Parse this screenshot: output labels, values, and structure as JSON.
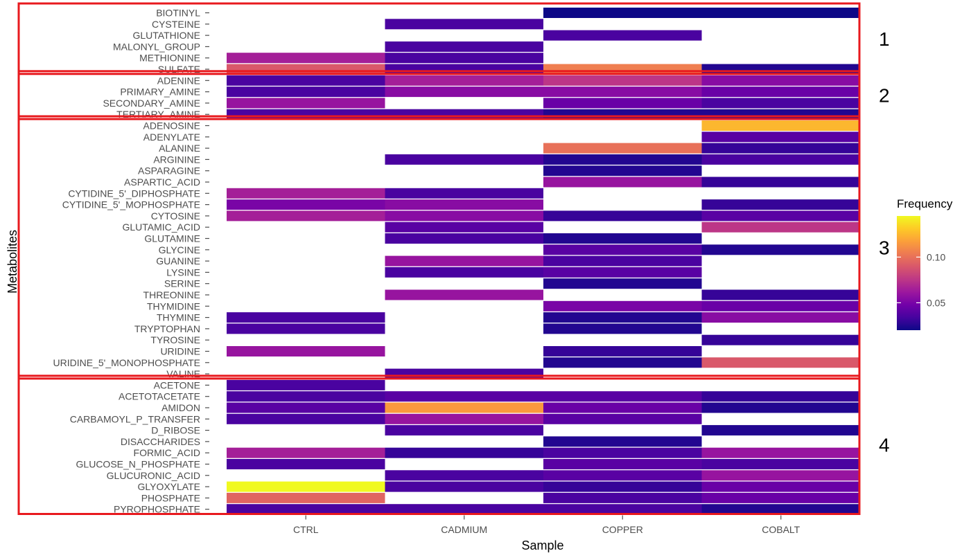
{
  "chart_data": {
    "type": "heatmap",
    "xlabel": "Sample",
    "ylabel": "Metabolites",
    "x_categories": [
      "CTRL",
      "CADMIUM",
      "COPPER",
      "COBALT"
    ],
    "y_categories": [
      "BIOTINYL",
      "CYSTEINE",
      "GLUTATHIONE",
      "MALONYL_GROUP",
      "METHIONINE",
      "SULFATE",
      "ADENINE",
      "PRIMARY_AMINE",
      "SECONDARY_AMINE",
      "TERTIARY_AMINE",
      "ADENOSINE",
      "ADENYLATE",
      "ALANINE",
      "ARGININE",
      "ASPARAGINE",
      "ASPARTIC_ACID",
      "CYTIDINE_5'_DIPHOSPHATE",
      "CYTIDINE_5'_MOPHOSPHATE",
      "CYTOSINE",
      "GLUTAMIC_ACID",
      "GLUTAMINE",
      "GLYCINE",
      "GUANINE",
      "LYSINE",
      "SERINE",
      "THREONINE",
      "THYMIDINE",
      "THYMINE",
      "TRYPTOPHAN",
      "TYROSINE",
      "URIDINE",
      "URIDINE_5'_MONOPHOSPHATE",
      "VALINE",
      "ACETONE",
      "ACETOTACETATE",
      "AMIDON",
      "CARBAMOYL_P_TRANSFER",
      "D_RIBOSE",
      "DISACCHARIDES",
      "FORMIC_ACID",
      "GLUCOSE_N_PHOSPHATE",
      "GLUCURONIC_ACID",
      "GLYOXYLATE",
      "PHOSPHATE",
      "PYROPHOSPHATE"
    ],
    "values": [
      [
        null,
        null,
        0.02,
        0.02
      ],
      [
        null,
        0.035,
        null,
        null
      ],
      [
        null,
        null,
        0.035,
        null
      ],
      [
        null,
        0.035,
        null,
        null
      ],
      [
        0.065,
        0.035,
        null,
        null
      ],
      [
        0.09,
        0.035,
        0.105,
        0.025
      ],
      [
        0.035,
        0.065,
        0.075,
        0.055
      ],
      [
        0.035,
        0.055,
        0.055,
        0.045
      ],
      [
        0.06,
        null,
        0.045,
        0.035
      ],
      [
        0.035,
        0.035,
        0.025,
        0.025
      ],
      [
        null,
        null,
        null,
        0.125
      ],
      [
        null,
        null,
        null,
        0.04
      ],
      [
        null,
        null,
        0.1,
        0.03
      ],
      [
        null,
        0.035,
        0.025,
        0.035
      ],
      [
        null,
        null,
        0.025,
        null
      ],
      [
        null,
        null,
        0.06,
        0.03
      ],
      [
        0.065,
        0.035,
        null,
        null
      ],
      [
        0.05,
        0.055,
        null,
        0.03
      ],
      [
        0.065,
        0.055,
        0.03,
        0.04
      ],
      [
        null,
        0.04,
        null,
        0.075
      ],
      [
        null,
        0.035,
        0.025,
        null
      ],
      [
        null,
        null,
        0.04,
        0.025
      ],
      [
        null,
        0.06,
        0.035,
        null
      ],
      [
        null,
        0.035,
        0.04,
        null
      ],
      [
        null,
        null,
        0.025,
        null
      ],
      [
        null,
        0.06,
        null,
        0.03
      ],
      [
        null,
        null,
        0.05,
        0.045
      ],
      [
        0.035,
        null,
        0.025,
        0.055
      ],
      [
        0.035,
        null,
        0.025,
        null
      ],
      [
        null,
        null,
        null,
        0.03
      ],
      [
        0.06,
        null,
        0.03,
        null
      ],
      [
        null,
        null,
        0.025,
        0.09
      ],
      [
        null,
        0.035,
        null,
        null
      ],
      [
        0.035,
        null,
        null,
        null
      ],
      [
        0.035,
        0.04,
        0.04,
        0.03
      ],
      [
        0.04,
        0.115,
        0.045,
        0.025
      ],
      [
        0.035,
        0.06,
        0.04,
        null
      ],
      [
        null,
        0.035,
        null,
        0.025
      ],
      [
        null,
        null,
        0.025,
        null
      ],
      [
        0.065,
        0.03,
        0.035,
        0.06
      ],
      [
        0.035,
        null,
        0.04,
        0.035
      ],
      [
        null,
        0.035,
        0.04,
        0.06
      ],
      [
        0.145,
        0.035,
        0.03,
        0.045
      ],
      [
        0.095,
        null,
        0.035,
        0.045
      ],
      [
        0.035,
        0.035,
        0.035,
        0.025
      ]
    ],
    "legend": {
      "title": "Frequency",
      "ticks": [
        0.1,
        0.05
      ],
      "tick_labels": [
        "0.10",
        "0.05"
      ],
      "min": 0.02,
      "max": 0.145,
      "position": "right"
    },
    "colorscale": [
      "#0d0887",
      "#46039f",
      "#7201a8",
      "#9c179e",
      "#bd3786",
      "#d8576b",
      "#ed7953",
      "#fb9f3a",
      "#fdca26",
      "#f0f921"
    ],
    "groups": [
      {
        "label": "1",
        "rows": 6
      },
      {
        "label": "2",
        "rows": 4
      },
      {
        "label": "3",
        "rows": 23
      },
      {
        "label": "4",
        "rows": 12
      }
    ],
    "group_box_color": "#e8191e"
  }
}
